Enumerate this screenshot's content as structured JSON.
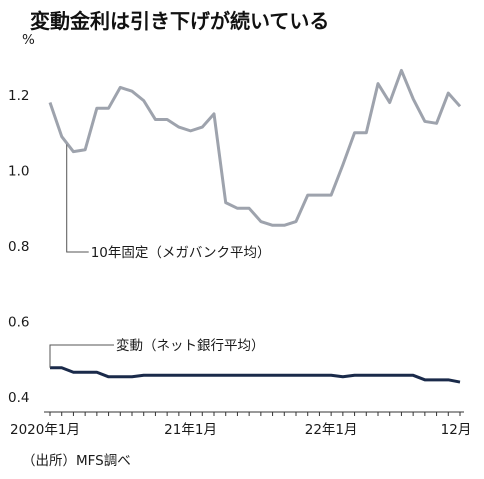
{
  "chart_data": {
    "type": "line",
    "title": "変動金利は引き下げが続いている",
    "ylabel": "%",
    "ylim": [
      0.4,
      1.3
    ],
    "yticks": [
      "0.4",
      "0.6",
      "0.8",
      "1.0",
      "1.2"
    ],
    "ytick_values": [
      0.4,
      0.6,
      0.8,
      1.0,
      1.2
    ],
    "xticks": [
      {
        "label": "2020年1月",
        "x": "2020-01"
      },
      {
        "label": "21年1月",
        "x": "2021-01"
      },
      {
        "label": "22年1月",
        "x": "2022-01"
      },
      {
        "label": "12月",
        "x": "2022-12"
      }
    ],
    "x": [
      "2020-01",
      "2020-02",
      "2020-03",
      "2020-04",
      "2020-05",
      "2020-06",
      "2020-07",
      "2020-08",
      "2020-09",
      "2020-10",
      "2020-11",
      "2020-12",
      "2021-01",
      "2021-02",
      "2021-03",
      "2021-04",
      "2021-05",
      "2021-06",
      "2021-07",
      "2021-08",
      "2021-09",
      "2021-10",
      "2021-11",
      "2021-12",
      "2022-01",
      "2022-02",
      "2022-03",
      "2022-04",
      "2022-05",
      "2022-06",
      "2022-07",
      "2022-08",
      "2022-09",
      "2022-10",
      "2022-11",
      "2022-12"
    ],
    "series": [
      {
        "name": "10年固定（メガバンク平均）",
        "color": "#9ea3ad",
        "values": [
          1.18,
          1.09,
          1.05,
          1.055,
          1.165,
          1.165,
          1.22,
          1.21,
          1.185,
          1.135,
          1.135,
          1.115,
          1.105,
          1.115,
          1.15,
          0.915,
          0.9,
          0.9,
          0.865,
          0.855,
          0.855,
          0.865,
          0.935,
          0.935,
          0.935,
          1.015,
          1.1,
          1.1,
          1.23,
          1.18,
          1.265,
          1.19,
          1.13,
          1.125,
          1.205,
          1.17
        ]
      },
      {
        "name": "変動（ネット銀行平均）",
        "color": "#1a2a4a",
        "values": [
          0.478,
          0.478,
          0.466,
          0.466,
          0.466,
          0.454,
          0.454,
          0.454,
          0.458,
          0.458,
          0.458,
          0.458,
          0.458,
          0.458,
          0.458,
          0.458,
          0.458,
          0.458,
          0.458,
          0.458,
          0.458,
          0.458,
          0.458,
          0.458,
          0.458,
          0.454,
          0.458,
          0.458,
          0.458,
          0.458,
          0.458,
          0.458,
          0.446,
          0.446,
          0.446,
          0.44
        ]
      }
    ],
    "source": "（出所）MFS調べ"
  }
}
